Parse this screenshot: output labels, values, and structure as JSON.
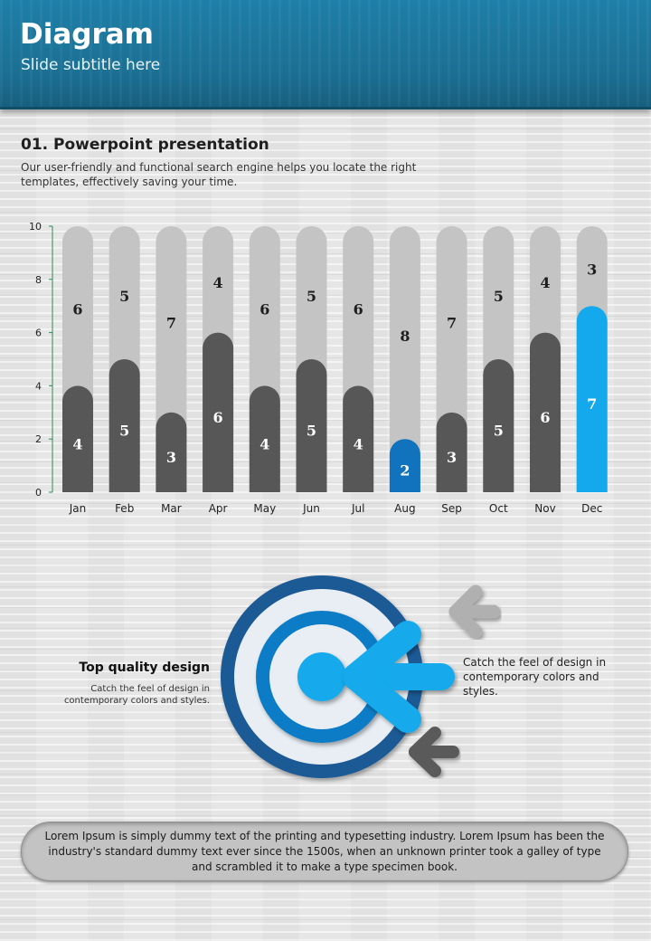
{
  "header": {
    "title": "Diagram",
    "subtitle": "Slide subtitle here"
  },
  "section": {
    "title": "01. Powerpoint presentation",
    "description": "Our user-friendly and functional search engine helps you locate the right templates, effectively saving your time."
  },
  "chart_data": {
    "type": "bar",
    "stacked": true,
    "categories": [
      "Jan",
      "Feb",
      "Mar",
      "Apr",
      "May",
      "Jun",
      "Jul",
      "Aug",
      "Sep",
      "Oct",
      "Nov",
      "Dec"
    ],
    "series": [
      {
        "values": [
          4,
          5,
          3,
          6,
          4,
          5,
          4,
          2,
          3,
          5,
          6,
          7
        ]
      },
      {
        "values": [
          6,
          5,
          7,
          4,
          6,
          5,
          6,
          8,
          7,
          5,
          4,
          3
        ]
      }
    ],
    "yticks": [
      0,
      2,
      4,
      6,
      8,
      10
    ],
    "ylim": [
      0,
      10
    ],
    "grid": false,
    "colors": {
      "background_bar": "#c4c4c4",
      "value_bar": "#575757",
      "highlight_aug": "#1173be",
      "highlight_dec": "#13a9ec"
    }
  },
  "target_graphic": {
    "left_title": "Top quality design",
    "left_text": "Catch the feel of design in contemporary colors and styles.",
    "right_text": "Catch the feel of design in contemporary colors and styles.",
    "icons": [
      "target-icon",
      "arrow-left-icon",
      "arrow-left-icon",
      "arrow-left-icon"
    ],
    "colors": {
      "ring_outer": "#1f5a96",
      "ring_mid": "#0b7bc6",
      "center": "#12a9ec",
      "arrow_blue": "#12a9ec",
      "arrow_light": "#b0b0b0",
      "arrow_dark": "#5a5a5a"
    }
  },
  "footer": {
    "text": "Lorem Ipsum is simply dummy text of the printing and typesetting industry. Lorem Ipsum has been the industry's standard dummy text ever since the 1500s, when an unknown printer took a galley of type and scrambled it to make a type specimen book."
  }
}
